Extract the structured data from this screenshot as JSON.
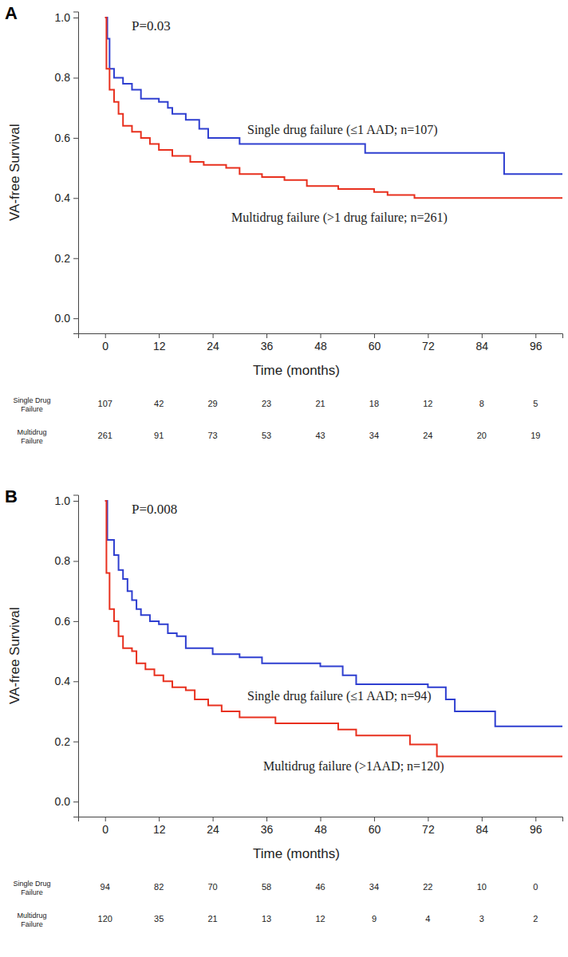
{
  "chart_data": [
    {
      "type": "line",
      "panel": "A",
      "annotation": "P=0.03",
      "x_label": "Time (months)",
      "y_label": "VA-free Survival",
      "line_style": "step",
      "xlim": [
        -6,
        102
      ],
      "xticks": [
        0,
        12,
        24,
        36,
        48,
        60,
        72,
        84,
        96
      ],
      "ylim": [
        -0.05,
        1.02
      ],
      "yticks": [
        {
          "value": 0,
          "label": "0.0"
        },
        0.2,
        0.4,
        0.6,
        0.8,
        {
          "value": 1,
          "label": "1.0"
        }
      ],
      "series": [
        {
          "name": "Single drug failure (≤1 AAD; n=107)",
          "color": "#2f3fd0",
          "x": [
            0,
            0.5,
            1,
            2,
            4,
            6,
            8,
            12,
            14,
            15,
            18,
            21,
            23,
            30,
            58,
            89,
            102
          ],
          "values": [
            1.0,
            0.93,
            0.83,
            0.8,
            0.78,
            0.76,
            0.73,
            0.72,
            0.7,
            0.68,
            0.66,
            0.63,
            0.6,
            0.58,
            0.55,
            0.48,
            0.48
          ]
        },
        {
          "name": "Multidrug failure (>1 drug failure; n=261)",
          "color": "#e8301e",
          "x": [
            0,
            0.3,
            1,
            2,
            3,
            4,
            6,
            8,
            10,
            12,
            15,
            19,
            22,
            27,
            30,
            35,
            40,
            45,
            52,
            60,
            63,
            69,
            102
          ],
          "values": [
            1.0,
            0.83,
            0.76,
            0.72,
            0.68,
            0.64,
            0.62,
            0.6,
            0.58,
            0.56,
            0.54,
            0.52,
            0.51,
            0.5,
            0.48,
            0.47,
            0.46,
            0.44,
            0.43,
            0.42,
            0.41,
            0.4,
            0.4
          ]
        }
      ],
      "risk_table": {
        "times": [
          0,
          12,
          24,
          36,
          48,
          60,
          72,
          84,
          96
        ],
        "rows": [
          {
            "label": [
              "Single Drug",
              "Failure"
            ],
            "values": [
              107,
              42,
              29,
              23,
              21,
              18,
              12,
              8,
              5
            ]
          },
          {
            "label": [
              "Multidrug",
              "Failure"
            ],
            "values": [
              261,
              91,
              73,
              53,
              43,
              34,
              24,
              20,
              19
            ]
          }
        ]
      }
    },
    {
      "type": "line",
      "panel": "B",
      "annotation": "P=0.008",
      "x_label": "Time (months)",
      "y_label": "VA-free Survival",
      "line_style": "step",
      "xlim": [
        -6,
        102
      ],
      "xticks": [
        0,
        12,
        24,
        36,
        48,
        60,
        72,
        84,
        96
      ],
      "ylim": [
        -0.05,
        1.02
      ],
      "yticks": [
        {
          "value": 0,
          "label": "0.0"
        },
        0.2,
        0.4,
        0.6,
        0.8,
        {
          "value": 1,
          "label": "1.0"
        }
      ],
      "series": [
        {
          "name": "Single drug failure (≤1 AAD; n=94)",
          "color": "#2f3fd0",
          "x": [
            0,
            0.5,
            2,
            3,
            4,
            5,
            6,
            7,
            8,
            10,
            12,
            14,
            16,
            18,
            24,
            30,
            35,
            48,
            53,
            56,
            72,
            76,
            78,
            87,
            102
          ],
          "values": [
            1.0,
            0.87,
            0.82,
            0.77,
            0.74,
            0.7,
            0.67,
            0.64,
            0.62,
            0.6,
            0.59,
            0.56,
            0.55,
            0.51,
            0.49,
            0.48,
            0.46,
            0.45,
            0.42,
            0.39,
            0.38,
            0.34,
            0.3,
            0.25,
            0.25
          ]
        },
        {
          "name": "Multidrug failure (>1AAD; n=120)",
          "color": "#e8301e",
          "x": [
            0,
            0.3,
            1,
            2,
            3,
            4,
            6,
            7,
            9,
            11,
            13,
            15,
            18,
            20,
            23,
            26,
            30,
            38,
            52,
            56,
            68,
            74,
            102
          ],
          "values": [
            1.0,
            0.76,
            0.64,
            0.6,
            0.55,
            0.51,
            0.5,
            0.46,
            0.44,
            0.42,
            0.4,
            0.38,
            0.37,
            0.34,
            0.32,
            0.3,
            0.28,
            0.26,
            0.24,
            0.22,
            0.19,
            0.15,
            0.15
          ]
        }
      ],
      "risk_table": {
        "times": [
          0,
          12,
          24,
          36,
          48,
          60,
          72,
          84,
          96
        ],
        "rows": [
          {
            "label": [
              "Single Drug",
              "Failure"
            ],
            "values": [
              94,
              82,
              70,
              58,
              46,
              34,
              22,
              10,
              0
            ]
          },
          {
            "label": [
              "Multidrug",
              "Failure"
            ],
            "values": [
              120,
              35,
              21,
              13,
              12,
              9,
              4,
              3,
              2
            ]
          }
        ]
      }
    }
  ]
}
